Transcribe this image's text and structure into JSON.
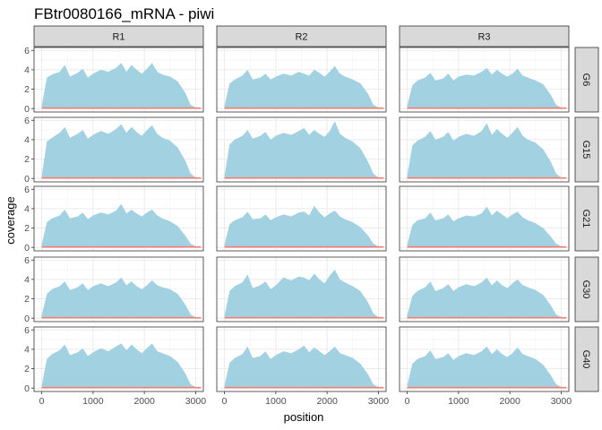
{
  "chart_data": {
    "type": "area",
    "title": "FBtr0080166_mRNA - piwi",
    "xlabel": "position",
    "ylabel": "coverage",
    "xlim": [
      -150,
      3150
    ],
    "ylim": [
      -0.35,
      6.3
    ],
    "x_ticks": [
      0,
      1000,
      2000,
      3000
    ],
    "y_ticks": [
      0,
      2,
      4,
      6
    ],
    "columns": [
      "R1",
      "R2",
      "R3"
    ],
    "rows": [
      "G6",
      "G15",
      "G21",
      "G30",
      "G40"
    ],
    "grid": true,
    "legend": "none",
    "colors": {
      "coverage": "#a2d1e2",
      "baseline": "#f08070",
      "strip_bg": "#d9d9d9"
    },
    "panels": [
      {
        "row": "G6",
        "col": "R1",
        "x": [
          0,
          100,
          200,
          350,
          450,
          550,
          700,
          800,
          900,
          1000,
          1150,
          1300,
          1450,
          1550,
          1650,
          1750,
          1850,
          1950,
          2050,
          2150,
          2250,
          2350,
          2500,
          2650,
          2800,
          2900,
          3000
        ],
        "y": [
          0.3,
          3.2,
          3.5,
          3.8,
          4.5,
          3.3,
          3.7,
          4.1,
          3.2,
          3.6,
          4.0,
          3.8,
          4.2,
          4.7,
          3.8,
          4.5,
          4.0,
          3.6,
          4.1,
          4.7,
          3.8,
          3.5,
          3.3,
          2.8,
          1.6,
          0.4,
          0.1
        ]
      },
      {
        "row": "G6",
        "col": "R2",
        "x": [
          0,
          100,
          200,
          350,
          450,
          550,
          700,
          800,
          900,
          1000,
          1150,
          1300,
          1450,
          1550,
          1650,
          1750,
          1850,
          1950,
          2050,
          2150,
          2250,
          2350,
          2500,
          2650,
          2800,
          2900,
          3000
        ],
        "y": [
          0.3,
          2.6,
          3.0,
          3.4,
          4.0,
          3.0,
          3.2,
          3.6,
          3.0,
          3.3,
          3.6,
          3.4,
          3.8,
          3.6,
          3.4,
          4.0,
          3.7,
          3.3,
          3.8,
          4.4,
          3.6,
          3.3,
          3.0,
          2.6,
          1.5,
          0.4,
          0.1
        ]
      },
      {
        "row": "G6",
        "col": "R3",
        "x": [
          0,
          100,
          200,
          350,
          450,
          550,
          700,
          800,
          900,
          1000,
          1150,
          1300,
          1450,
          1550,
          1650,
          1750,
          1850,
          1950,
          2050,
          2150,
          2250,
          2350,
          2500,
          2650,
          2800,
          2900,
          3000
        ],
        "y": [
          0.3,
          2.4,
          2.9,
          3.2,
          3.7,
          2.9,
          3.1,
          3.6,
          2.9,
          3.3,
          3.5,
          3.4,
          3.8,
          4.2,
          3.5,
          4.0,
          3.6,
          3.3,
          3.6,
          4.1,
          3.4,
          3.2,
          2.9,
          2.5,
          1.4,
          0.4,
          0.1
        ]
      },
      {
        "row": "G15",
        "col": "R1",
        "x": [
          0,
          100,
          200,
          350,
          450,
          550,
          700,
          800,
          900,
          1000,
          1150,
          1300,
          1450,
          1550,
          1650,
          1750,
          1850,
          1950,
          2050,
          2150,
          2250,
          2350,
          2500,
          2650,
          2800,
          2900,
          3000
        ],
        "y": [
          0.3,
          3.8,
          4.2,
          4.7,
          5.3,
          4.2,
          4.6,
          5.0,
          4.1,
          4.5,
          4.9,
          4.6,
          5.1,
          5.6,
          4.7,
          5.3,
          4.8,
          4.4,
          5.0,
          5.5,
          4.6,
          4.2,
          3.9,
          3.2,
          1.8,
          0.5,
          0.1
        ]
      },
      {
        "row": "G15",
        "col": "R2",
        "x": [
          0,
          100,
          200,
          350,
          450,
          550,
          700,
          800,
          900,
          1000,
          1150,
          1300,
          1450,
          1550,
          1650,
          1750,
          1850,
          1950,
          2050,
          2150,
          2250,
          2350,
          2500,
          2650,
          2800,
          2900,
          3000
        ],
        "y": [
          0.3,
          3.5,
          4.0,
          4.4,
          5.0,
          4.1,
          4.4,
          4.8,
          4.0,
          4.4,
          4.7,
          4.5,
          4.9,
          5.2,
          4.5,
          5.0,
          4.6,
          4.3,
          4.9,
          5.9,
          4.6,
          4.2,
          3.8,
          3.1,
          1.7,
          0.5,
          0.1
        ]
      },
      {
        "row": "G15",
        "col": "R3",
        "x": [
          0,
          100,
          200,
          350,
          450,
          550,
          700,
          800,
          900,
          1000,
          1150,
          1300,
          1450,
          1550,
          1650,
          1750,
          1850,
          1950,
          2050,
          2150,
          2250,
          2350,
          2500,
          2650,
          2800,
          2900,
          3000
        ],
        "y": [
          0.3,
          3.4,
          3.9,
          4.3,
          4.9,
          4.0,
          4.3,
          4.8,
          3.9,
          4.3,
          4.6,
          4.4,
          4.9,
          5.7,
          4.5,
          5.1,
          4.6,
          4.2,
          4.7,
          5.3,
          4.4,
          4.0,
          3.7,
          3.0,
          1.7,
          0.5,
          0.1
        ]
      },
      {
        "row": "G21",
        "col": "R1",
        "x": [
          0,
          100,
          200,
          350,
          450,
          550,
          700,
          800,
          900,
          1000,
          1150,
          1300,
          1450,
          1550,
          1650,
          1750,
          1850,
          1950,
          2050,
          2150,
          2250,
          2350,
          2500,
          2650,
          2800,
          2900,
          3000
        ],
        "y": [
          0.3,
          2.6,
          3.0,
          3.3,
          3.9,
          3.0,
          3.2,
          3.6,
          2.9,
          3.3,
          3.6,
          3.4,
          3.8,
          4.5,
          3.5,
          3.9,
          3.5,
          3.2,
          3.6,
          3.9,
          3.3,
          3.0,
          2.7,
          2.2,
          1.2,
          0.4,
          0.1
        ]
      },
      {
        "row": "G21",
        "col": "R2",
        "x": [
          0,
          100,
          200,
          350,
          450,
          550,
          700,
          800,
          900,
          1000,
          1150,
          1300,
          1450,
          1550,
          1650,
          1750,
          1850,
          1950,
          2050,
          2150,
          2250,
          2350,
          2500,
          2650,
          2800,
          2900,
          3000
        ],
        "y": [
          0.3,
          2.4,
          2.8,
          3.1,
          3.7,
          2.9,
          3.0,
          3.4,
          2.8,
          3.1,
          3.4,
          3.2,
          3.6,
          3.7,
          3.3,
          4.3,
          3.6,
          3.1,
          3.5,
          3.8,
          3.2,
          2.9,
          2.6,
          2.1,
          1.2,
          0.4,
          0.1
        ]
      },
      {
        "row": "G21",
        "col": "R3",
        "x": [
          0,
          100,
          200,
          350,
          450,
          550,
          700,
          800,
          900,
          1000,
          1150,
          1300,
          1450,
          1550,
          1650,
          1750,
          1850,
          1950,
          2050,
          2150,
          2250,
          2350,
          2500,
          2650,
          2800,
          2900,
          3000
        ],
        "y": [
          0.3,
          2.3,
          2.8,
          3.0,
          3.6,
          2.8,
          3.0,
          3.4,
          2.7,
          3.0,
          3.3,
          3.2,
          3.5,
          4.2,
          3.3,
          3.8,
          3.4,
          3.0,
          3.4,
          3.7,
          3.1,
          2.8,
          2.5,
          2.0,
          1.1,
          0.4,
          0.1
        ]
      },
      {
        "row": "G30",
        "col": "R1",
        "x": [
          0,
          100,
          200,
          350,
          450,
          550,
          700,
          800,
          900,
          1000,
          1150,
          1300,
          1450,
          1550,
          1650,
          1750,
          1850,
          1950,
          2050,
          2150,
          2250,
          2350,
          2500,
          2650,
          2800,
          2900,
          3000
        ],
        "y": [
          0.3,
          2.5,
          3.0,
          3.3,
          3.8,
          2.9,
          3.2,
          3.6,
          2.9,
          3.3,
          3.6,
          3.3,
          3.7,
          4.2,
          3.4,
          3.8,
          3.3,
          3.0,
          3.4,
          3.9,
          3.4,
          3.2,
          3.0,
          2.5,
          1.4,
          0.4,
          0.1
        ]
      },
      {
        "row": "G30",
        "col": "R2",
        "x": [
          0,
          100,
          200,
          350,
          450,
          550,
          700,
          800,
          900,
          1000,
          1150,
          1300,
          1450,
          1550,
          1650,
          1750,
          1850,
          1950,
          2050,
          2150,
          2250,
          2350,
          2500,
          2650,
          2800,
          2900,
          3000
        ],
        "y": [
          0.3,
          2.8,
          3.3,
          3.7,
          4.5,
          3.1,
          3.4,
          3.8,
          3.0,
          3.4,
          4.2,
          3.9,
          4.3,
          4.2,
          3.9,
          4.6,
          4.0,
          3.6,
          4.4,
          5.0,
          4.0,
          3.7,
          3.3,
          2.8,
          1.6,
          0.5,
          0.1
        ]
      },
      {
        "row": "G30",
        "col": "R3",
        "x": [
          0,
          100,
          200,
          350,
          450,
          550,
          700,
          800,
          900,
          1000,
          1150,
          1300,
          1450,
          1550,
          1650,
          1750,
          1850,
          1950,
          2050,
          2150,
          2250,
          2350,
          2500,
          2650,
          2800,
          2900,
          3000
        ],
        "y": [
          0.3,
          2.3,
          2.8,
          3.2,
          3.8,
          2.8,
          3.1,
          3.5,
          2.8,
          3.2,
          3.5,
          3.3,
          3.7,
          4.2,
          3.4,
          3.9,
          3.4,
          3.1,
          3.6,
          4.0,
          3.4,
          3.2,
          2.9,
          2.4,
          1.3,
          0.4,
          0.1
        ]
      },
      {
        "row": "G40",
        "col": "R1",
        "x": [
          0,
          100,
          200,
          350,
          450,
          550,
          700,
          800,
          900,
          1000,
          1150,
          1300,
          1450,
          1550,
          1650,
          1750,
          1850,
          1950,
          2050,
          2150,
          2250,
          2350,
          2500,
          2650,
          2800,
          2900,
          3000
        ],
        "y": [
          0.3,
          3.0,
          3.5,
          3.9,
          4.5,
          3.4,
          3.7,
          4.1,
          3.3,
          3.7,
          4.1,
          3.8,
          4.3,
          4.6,
          3.9,
          4.5,
          4.0,
          3.6,
          4.1,
          4.6,
          3.8,
          3.6,
          3.3,
          2.7,
          1.5,
          0.4,
          0.1
        ]
      },
      {
        "row": "G40",
        "col": "R2",
        "x": [
          0,
          100,
          200,
          350,
          450,
          550,
          700,
          800,
          900,
          1000,
          1150,
          1300,
          1450,
          1550,
          1650,
          1750,
          1850,
          1950,
          2050,
          2150,
          2250,
          2350,
          2500,
          2650,
          2800,
          2900,
          3000
        ],
        "y": [
          0.3,
          2.6,
          3.1,
          3.5,
          4.3,
          3.1,
          3.3,
          3.8,
          3.0,
          3.4,
          3.8,
          3.6,
          4.0,
          4.4,
          3.7,
          4.2,
          3.8,
          3.4,
          3.8,
          4.3,
          3.6,
          3.4,
          3.1,
          2.5,
          1.4,
          0.4,
          0.1
        ]
      },
      {
        "row": "G40",
        "col": "R3",
        "x": [
          0,
          100,
          200,
          350,
          450,
          550,
          700,
          800,
          900,
          1000,
          1150,
          1300,
          1450,
          1550,
          1650,
          1750,
          1850,
          1950,
          2050,
          2150,
          2250,
          2350,
          2500,
          2650,
          2800,
          2900,
          3000
        ],
        "y": [
          0.3,
          2.5,
          3.0,
          3.3,
          3.9,
          3.0,
          3.2,
          3.6,
          2.9,
          3.3,
          3.6,
          3.4,
          3.8,
          4.3,
          3.5,
          4.0,
          3.5,
          3.2,
          3.6,
          4.2,
          3.5,
          3.3,
          3.0,
          2.4,
          1.3,
          0.4,
          0.1
        ]
      }
    ],
    "baseline": {
      "x": [
        0,
        3000
      ],
      "y": [
        0.05,
        0.05
      ]
    }
  }
}
